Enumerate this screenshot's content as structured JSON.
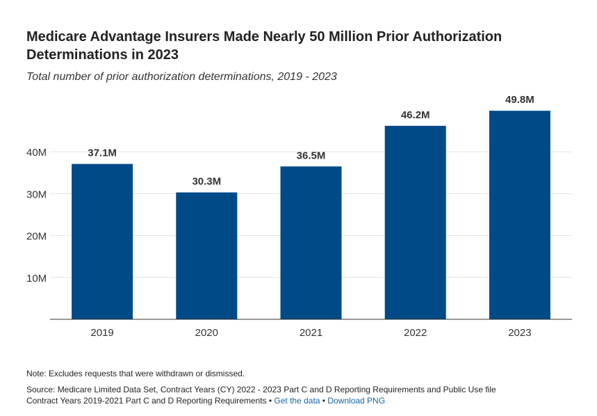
{
  "header": {
    "title": "Medicare Advantage Insurers Made Nearly 50 Million Prior Authorization Determinations in 2023",
    "subtitle": "Total number of prior authorization determinations, 2019 - 2023"
  },
  "chart_data": {
    "type": "bar",
    "title": "Medicare Advantage Insurers Made Nearly 50 Million Prior Authorization Determinations in 2023",
    "subtitle": "Total number of prior authorization determinations, 2019 - 2023",
    "xlabel": "",
    "ylabel": "",
    "categories": [
      "2019",
      "2020",
      "2021",
      "2022",
      "2023"
    ],
    "values": [
      37.1,
      30.3,
      36.5,
      46.2,
      49.8
    ],
    "value_labels": [
      "37.1M",
      "30.3M",
      "36.5M",
      "46.2M",
      "49.8M"
    ],
    "unit": "M",
    "ylim": [
      0,
      50
    ],
    "yticks": [
      10,
      20,
      30,
      40
    ],
    "ytick_labels": [
      "10M",
      "20M",
      "30M",
      "40M"
    ],
    "grid": true,
    "bar_color": "#004a87"
  },
  "footer": {
    "note": "Note: Excludes requests that were withdrawn or dismissed.",
    "source_line1": "Source: Medicare Limited Data Set, Contract Years (CY) 2022 - 2023 Part C and D Reporting Requirements and Public Use file",
    "source_line2": "Contract Years 2019-2021 Part C and D Reporting Requirements",
    "separator": " • ",
    "get_data_label": "Get the data",
    "download_label": "Download PNG"
  }
}
